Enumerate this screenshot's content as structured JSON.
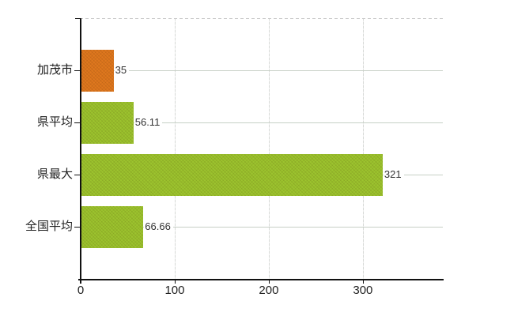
{
  "chart_data": {
    "type": "bar",
    "orientation": "horizontal",
    "title": "",
    "xlabel": "",
    "ylabel": "",
    "categories": [
      "加茂市",
      "県平均",
      "県最大",
      "全国平均"
    ],
    "series": [
      {
        "name": "values",
        "values": [
          35,
          56.11,
          321,
          66.66
        ]
      }
    ],
    "value_labels": [
      "35",
      "56.11",
      "321",
      "66.66"
    ],
    "bar_colors": [
      "#e0781e",
      "#9cc42e",
      "#9cc42e",
      "#9cc42e"
    ],
    "x_ticks": [
      {
        "value": 0,
        "label": "0"
      },
      {
        "value": 100,
        "label": "100"
      },
      {
        "value": 200,
        "label": "200"
      },
      {
        "value": 300,
        "label": "300"
      }
    ],
    "xlim": [
      0,
      385
    ],
    "grid": true,
    "legend_position": "none"
  },
  "colors": {
    "bar_orange": "#e0781e",
    "bar_green": "#9cc42e",
    "axis": "#111111",
    "vertical_gridline": "#d7d9d7",
    "category_line": "#c7d0c6",
    "top_border_dash": "#c9c9c9",
    "category_text": "#1f1f1f",
    "value_text": "#333333",
    "background": "#ffffff"
  }
}
